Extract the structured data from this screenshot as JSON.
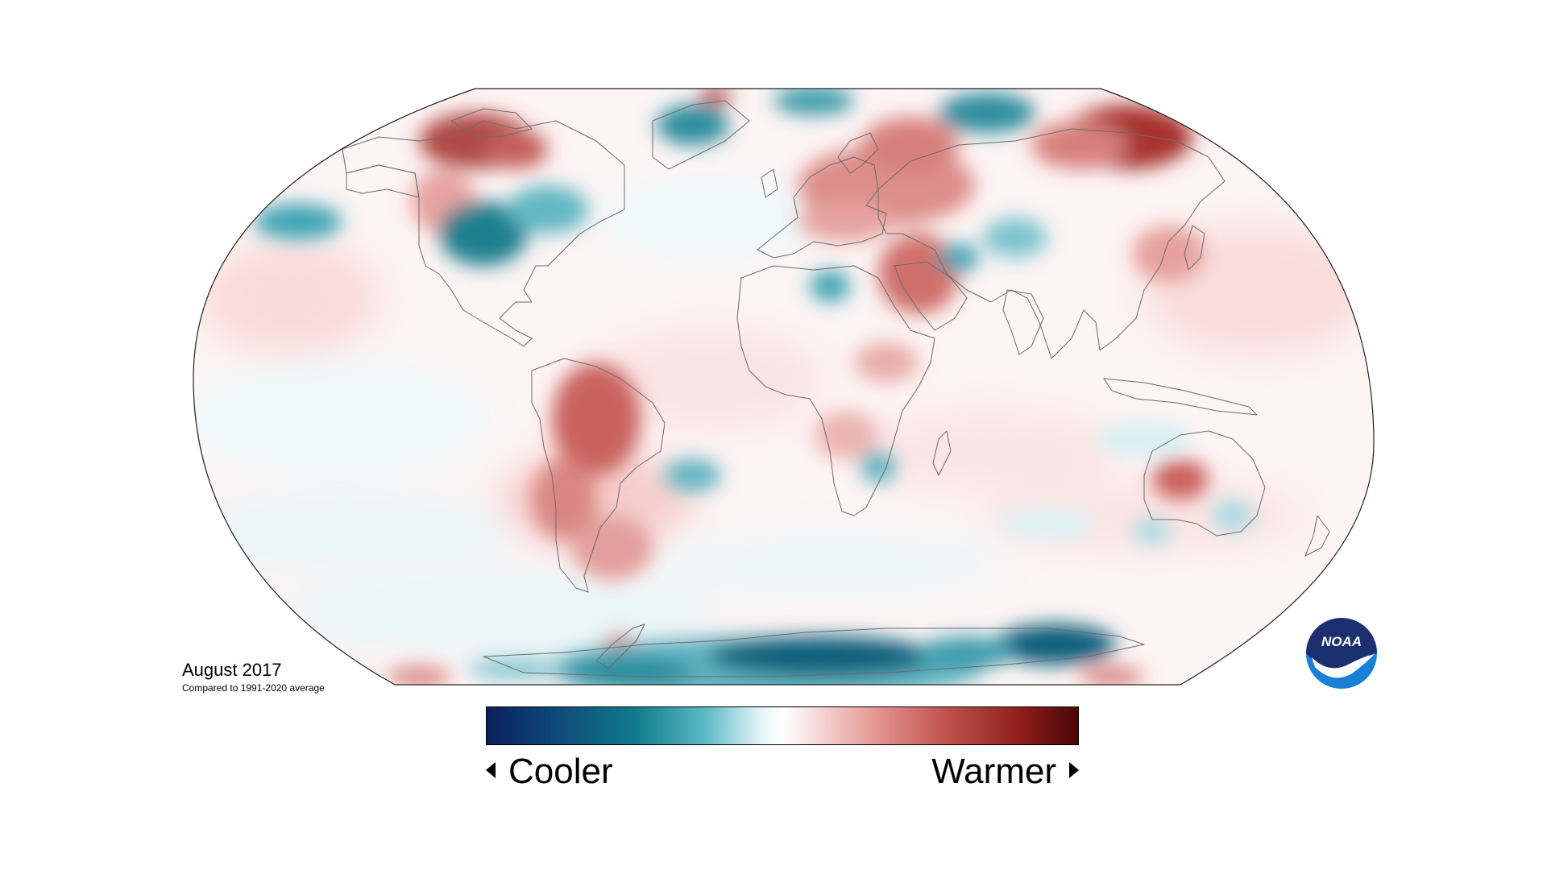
{
  "caption": {
    "title": "August 2017",
    "subtitle": "Compared to 1991-2020 average"
  },
  "scale": {
    "left_label": "Cooler",
    "right_label": "Warmer",
    "gradient_colors": [
      "#0b1f5c",
      "#0f4a7a",
      "#0f7a8c",
      "#5cb8c4",
      "#dff3f6",
      "#ffffff",
      "#f7dede",
      "#e69a96",
      "#c25550",
      "#8f1f1a",
      "#4a0707"
    ]
  },
  "logo": {
    "text": "NOAA",
    "colors": {
      "navy": "#1d2f6f",
      "blue": "#1a7fd6",
      "white": "#ffffff"
    }
  },
  "map": {
    "projection": "robinson",
    "ocean_base_color": "#fdf3f3",
    "outline_color": "#222222",
    "coast_color": "#6b6b6b"
  }
}
